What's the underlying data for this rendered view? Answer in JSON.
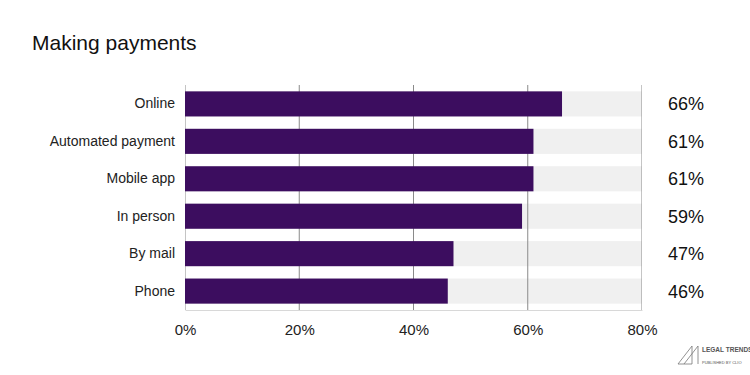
{
  "chart_data": {
    "type": "bar",
    "orientation": "horizontal",
    "title": "Making payments",
    "categories": [
      "Online",
      "Automated payment",
      "Mobile app",
      "In person",
      "By mail",
      "Phone"
    ],
    "values": [
      66,
      61,
      61,
      59,
      47,
      46
    ],
    "value_labels": [
      "66%",
      "61%",
      "61%",
      "59%",
      "47%",
      "46%"
    ],
    "data_labels": true,
    "color": "#3c0d5f",
    "xlim": [
      0,
      80
    ],
    "xticks": [
      {
        "value": 0,
        "label": "0%"
      },
      {
        "value": 20,
        "label": "20%"
      },
      {
        "value": 40,
        "label": "40%"
      },
      {
        "value": 60,
        "label": "60%"
      },
      {
        "value": 80,
        "label": "80%"
      }
    ],
    "grid": true,
    "annotations": [
      "LEGAL TRENDS REPORT",
      "PUBLISHED BY CLIO"
    ]
  }
}
